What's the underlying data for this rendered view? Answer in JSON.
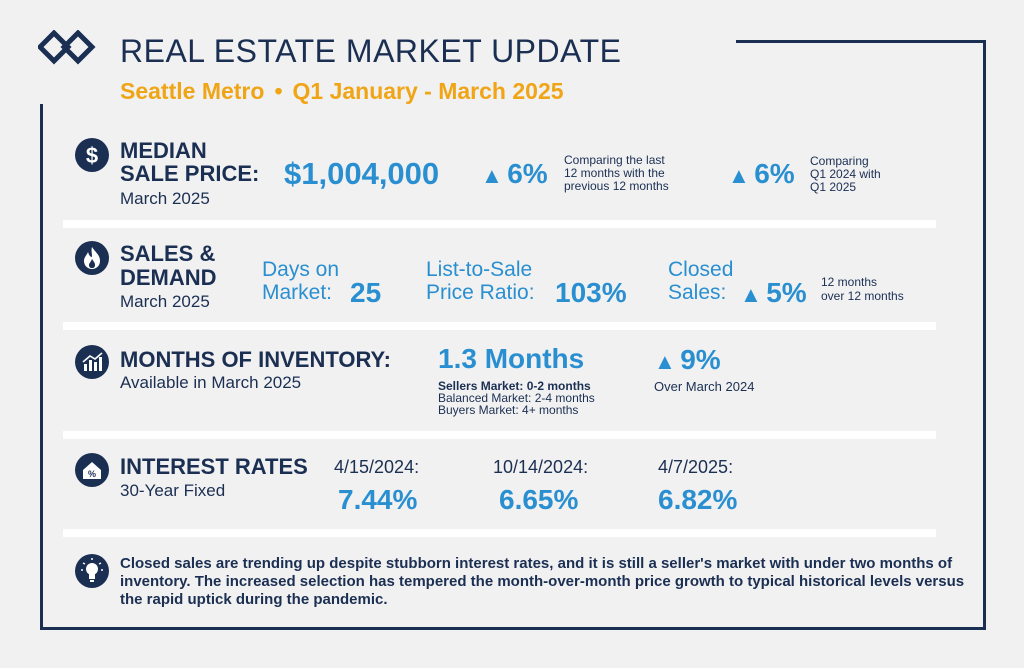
{
  "header": {
    "title": "REAL ESTATE MARKET UPDATE",
    "region": "Seattle Metro",
    "separator": "•",
    "period": "Q1 January - March 2025"
  },
  "median_sale_price": {
    "icon": "dollar-icon",
    "heading_line1": "MEDIAN",
    "heading_line2": "SALE PRICE:",
    "subheading": "March 2025",
    "value": "$1,004,000",
    "change1_arrow": "▲",
    "change1_value": "6%",
    "change1_note_line1": "Comparing the last",
    "change1_note_line2": "12 months with the",
    "change1_note_line3": "previous 12 months",
    "change2_arrow": "▲",
    "change2_value": "6%",
    "change2_note_line1": "Comparing",
    "change2_note_line2": "Q1 2024 with",
    "change2_note_line3": "Q1 2025"
  },
  "sales_demand": {
    "icon": "flame-icon",
    "heading_line1": "SALES &",
    "heading_line2": "DEMAND",
    "subheading": "March 2025",
    "dom_label_line1": "Days on",
    "dom_label_line2": "Market:",
    "dom_value": "25",
    "ratio_label_line1": "List-to-Sale",
    "ratio_label_line2": "Price Ratio:",
    "ratio_value": "103%",
    "closed_label_line1": "Closed",
    "closed_label_line2": "Sales:",
    "closed_arrow": "▲",
    "closed_value": "5%",
    "closed_note_line1": "12 months",
    "closed_note_line2": "over 12 months"
  },
  "inventory": {
    "icon": "bar-chart-icon",
    "heading": "MONTHS OF INVENTORY:",
    "subheading": "Available in March 2025",
    "value": "1.3 Months",
    "sellers": "Sellers Market: 0-2 months",
    "balanced": "Balanced Market: 2-4 months",
    "buyers": "Buyers Market: 4+ months",
    "change_arrow": "▲",
    "change_value": "9%",
    "change_note": "Over March 2024"
  },
  "interest_rates": {
    "icon": "house-percent-icon",
    "heading": "INTEREST RATES",
    "subheading": "30-Year Fixed",
    "rates": [
      {
        "date": "4/15/2024:",
        "value": "7.44%"
      },
      {
        "date": "10/14/2024:",
        "value": "6.65%"
      },
      {
        "date": "4/7/2025:",
        "value": "6.82%"
      }
    ]
  },
  "summary": {
    "icon": "lightbulb-icon",
    "text": "Closed sales are trending up despite stubborn interest rates, and it is still a seller's market with under two months of inventory. The increased selection has tempered the month-over-month price growth to typical historical levels versus the rapid uptick during the pandemic."
  },
  "colors": {
    "navy": "#1b2f52",
    "blue": "#2a8fd0",
    "gold": "#f0a517",
    "background": "#f1f1f2"
  }
}
